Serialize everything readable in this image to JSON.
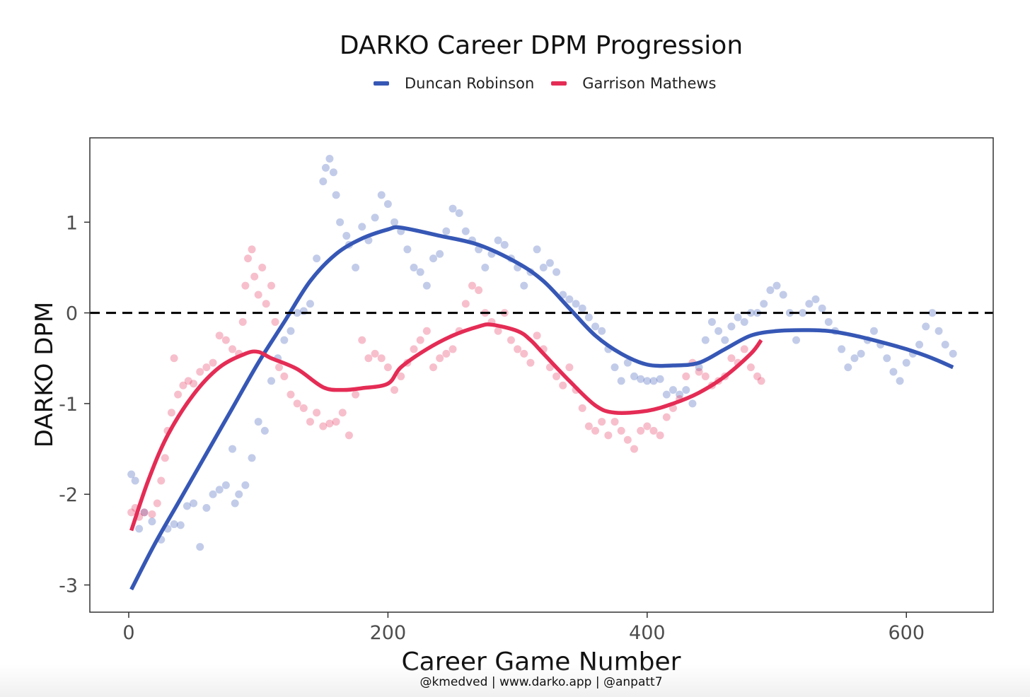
{
  "chart_data": {
    "type": "scatter",
    "title": "DARKO Career DPM Progression",
    "xlabel": "Career Game Number",
    "ylabel": "DARKO DPM",
    "xlim": [
      -30,
      667
    ],
    "ylim": [
      -3.3,
      1.93
    ],
    "x_ticks": [
      0,
      200,
      400,
      600
    ],
    "y_ticks": [
      1,
      0,
      -1,
      -2,
      -3
    ],
    "x_tick_labels": [
      "0",
      "200",
      "400",
      "600"
    ],
    "y_tick_labels": [
      "1",
      "0",
      "-1",
      "-2",
      "-3"
    ],
    "reference_line": {
      "y": 0,
      "style": "dashed"
    },
    "legend_position": "top",
    "series": [
      {
        "name": "Duncan Robinson",
        "color": "#3657b5",
        "n_games": 636,
        "smooth": [
          [
            2,
            -3.05
          ],
          [
            20,
            -2.55
          ],
          [
            40,
            -2.05
          ],
          [
            60,
            -1.55
          ],
          [
            80,
            -1.05
          ],
          [
            100,
            -0.55
          ],
          [
            120,
            -0.1
          ],
          [
            140,
            0.35
          ],
          [
            160,
            0.65
          ],
          [
            180,
            0.82
          ],
          [
            200,
            0.92
          ],
          [
            210,
            0.94
          ],
          [
            240,
            0.85
          ],
          [
            270,
            0.75
          ],
          [
            300,
            0.55
          ],
          [
            320,
            0.35
          ],
          [
            340,
            0.05
          ],
          [
            360,
            -0.25
          ],
          [
            380,
            -0.45
          ],
          [
            400,
            -0.57
          ],
          [
            420,
            -0.58
          ],
          [
            440,
            -0.55
          ],
          [
            460,
            -0.4
          ],
          [
            480,
            -0.25
          ],
          [
            500,
            -0.2
          ],
          [
            520,
            -0.19
          ],
          [
            540,
            -0.2
          ],
          [
            560,
            -0.25
          ],
          [
            580,
            -0.32
          ],
          [
            600,
            -0.4
          ],
          [
            620,
            -0.5
          ],
          [
            636,
            -0.6
          ]
        ],
        "points": [
          [
            2,
            -1.78
          ],
          [
            5,
            -1.85
          ],
          [
            8,
            -2.38
          ],
          [
            12,
            -2.2
          ],
          [
            18,
            -2.3
          ],
          [
            25,
            -2.5
          ],
          [
            30,
            -2.38
          ],
          [
            35,
            -2.33
          ],
          [
            40,
            -2.34
          ],
          [
            45,
            -2.13
          ],
          [
            50,
            -2.1
          ],
          [
            55,
            -2.58
          ],
          [
            60,
            -2.15
          ],
          [
            65,
            -2.0
          ],
          [
            70,
            -1.95
          ],
          [
            75,
            -1.9
          ],
          [
            80,
            -1.5
          ],
          [
            82,
            -2.1
          ],
          [
            85,
            -2.0
          ],
          [
            90,
            -1.9
          ],
          [
            95,
            -1.6
          ],
          [
            100,
            -1.2
          ],
          [
            105,
            -1.3
          ],
          [
            110,
            -0.75
          ],
          [
            115,
            -0.5
          ],
          [
            120,
            -0.3
          ],
          [
            125,
            -0.2
          ],
          [
            130,
            0.0
          ],
          [
            135,
            0.02
          ],
          [
            140,
            0.1
          ],
          [
            145,
            0.6
          ],
          [
            150,
            1.45
          ],
          [
            152,
            1.6
          ],
          [
            155,
            1.7
          ],
          [
            158,
            1.55
          ],
          [
            160,
            1.3
          ],
          [
            163,
            1.0
          ],
          [
            168,
            0.85
          ],
          [
            170,
            0.75
          ],
          [
            175,
            0.5
          ],
          [
            180,
            0.95
          ],
          [
            185,
            0.8
          ],
          [
            190,
            1.05
          ],
          [
            195,
            1.3
          ],
          [
            200,
            1.2
          ],
          [
            205,
            1.0
          ],
          [
            210,
            0.9
          ],
          [
            215,
            0.7
          ],
          [
            220,
            0.5
          ],
          [
            225,
            0.45
          ],
          [
            230,
            0.3
          ],
          [
            235,
            0.6
          ],
          [
            240,
            0.65
          ],
          [
            245,
            0.9
          ],
          [
            250,
            1.15
          ],
          [
            255,
            1.1
          ],
          [
            260,
            0.9
          ],
          [
            265,
            0.8
          ],
          [
            270,
            0.7
          ],
          [
            275,
            0.5
          ],
          [
            280,
            0.65
          ],
          [
            285,
            0.8
          ],
          [
            290,
            0.75
          ],
          [
            295,
            0.6
          ],
          [
            300,
            0.5
          ],
          [
            305,
            0.3
          ],
          [
            310,
            0.45
          ],
          [
            315,
            0.7
          ],
          [
            320,
            0.5
          ],
          [
            325,
            0.55
          ],
          [
            330,
            0.45
          ],
          [
            335,
            0.2
          ],
          [
            340,
            0.15
          ],
          [
            345,
            0.1
          ],
          [
            350,
            0.05
          ],
          [
            355,
            -0.05
          ],
          [
            360,
            -0.15
          ],
          [
            365,
            -0.2
          ],
          [
            370,
            -0.4
          ],
          [
            375,
            -0.6
          ],
          [
            380,
            -0.75
          ],
          [
            385,
            -0.55
          ],
          [
            390,
            -0.7
          ],
          [
            395,
            -0.73
          ],
          [
            400,
            -0.75
          ],
          [
            405,
            -0.75
          ],
          [
            410,
            -0.73
          ],
          [
            415,
            -0.9
          ],
          [
            420,
            -0.85
          ],
          [
            425,
            -0.9
          ],
          [
            430,
            -0.85
          ],
          [
            435,
            -1.0
          ],
          [
            440,
            -0.6
          ],
          [
            445,
            -0.3
          ],
          [
            450,
            -0.1
          ],
          [
            455,
            -0.2
          ],
          [
            460,
            -0.3
          ],
          [
            465,
            -0.15
          ],
          [
            470,
            -0.05
          ],
          [
            475,
            -0.1
          ],
          [
            480,
            0.0
          ],
          [
            485,
            0.0
          ],
          [
            490,
            0.1
          ],
          [
            495,
            0.25
          ],
          [
            500,
            0.3
          ],
          [
            505,
            0.2
          ],
          [
            510,
            0.0
          ],
          [
            515,
            -0.3
          ],
          [
            520,
            0.0
          ],
          [
            525,
            0.1
          ],
          [
            530,
            0.15
          ],
          [
            535,
            0.05
          ],
          [
            540,
            -0.1
          ],
          [
            545,
            -0.2
          ],
          [
            550,
            -0.4
          ],
          [
            555,
            -0.6
          ],
          [
            560,
            -0.5
          ],
          [
            565,
            -0.45
          ],
          [
            570,
            -0.3
          ],
          [
            575,
            -0.2
          ],
          [
            580,
            -0.35
          ],
          [
            585,
            -0.5
          ],
          [
            590,
            -0.65
          ],
          [
            595,
            -0.75
          ],
          [
            600,
            -0.55
          ],
          [
            605,
            -0.45
          ],
          [
            610,
            -0.35
          ],
          [
            615,
            -0.15
          ],
          [
            620,
            0.0
          ],
          [
            625,
            -0.2
          ],
          [
            630,
            -0.35
          ],
          [
            636,
            -0.45
          ]
        ]
      },
      {
        "name": "Garrison Mathews",
        "color": "#e42c55",
        "n_games": 488,
        "smooth": [
          [
            2,
            -2.4
          ],
          [
            15,
            -1.85
          ],
          [
            30,
            -1.35
          ],
          [
            50,
            -0.9
          ],
          [
            70,
            -0.6
          ],
          [
            90,
            -0.45
          ],
          [
            100,
            -0.43
          ],
          [
            110,
            -0.5
          ],
          [
            130,
            -0.62
          ],
          [
            150,
            -0.82
          ],
          [
            165,
            -0.85
          ],
          [
            180,
            -0.83
          ],
          [
            200,
            -0.78
          ],
          [
            210,
            -0.6
          ],
          [
            230,
            -0.4
          ],
          [
            250,
            -0.25
          ],
          [
            270,
            -0.15
          ],
          [
            280,
            -0.13
          ],
          [
            300,
            -0.2
          ],
          [
            310,
            -0.3
          ],
          [
            320,
            -0.45
          ],
          [
            340,
            -0.75
          ],
          [
            360,
            -1.02
          ],
          [
            375,
            -1.1
          ],
          [
            400,
            -1.08
          ],
          [
            420,
            -1.0
          ],
          [
            440,
            -0.88
          ],
          [
            460,
            -0.7
          ],
          [
            480,
            -0.45
          ],
          [
            488,
            -0.3
          ]
        ],
        "points": [
          [
            2,
            -2.2
          ],
          [
            5,
            -2.15
          ],
          [
            8,
            -2.25
          ],
          [
            12,
            -2.2
          ],
          [
            18,
            -2.22
          ],
          [
            22,
            -2.1
          ],
          [
            25,
            -1.85
          ],
          [
            28,
            -1.6
          ],
          [
            30,
            -1.3
          ],
          [
            33,
            -1.1
          ],
          [
            35,
            -0.5
          ],
          [
            38,
            -0.9
          ],
          [
            42,
            -0.8
          ],
          [
            46,
            -0.75
          ],
          [
            50,
            -0.78
          ],
          [
            55,
            -0.65
          ],
          [
            60,
            -0.6
          ],
          [
            65,
            -0.55
          ],
          [
            70,
            -0.25
          ],
          [
            75,
            -0.3
          ],
          [
            80,
            -0.4
          ],
          [
            85,
            -0.45
          ],
          [
            88,
            -0.1
          ],
          [
            90,
            0.3
          ],
          [
            92,
            0.6
          ],
          [
            95,
            0.7
          ],
          [
            97,
            0.4
          ],
          [
            100,
            0.2
          ],
          [
            103,
            0.5
          ],
          [
            106,
            0.1
          ],
          [
            110,
            0.3
          ],
          [
            113,
            -0.1
          ],
          [
            116,
            -0.6
          ],
          [
            120,
            -0.7
          ],
          [
            125,
            -0.9
          ],
          [
            130,
            -1.0
          ],
          [
            135,
            -1.05
          ],
          [
            140,
            -1.2
          ],
          [
            145,
            -1.1
          ],
          [
            150,
            -1.25
          ],
          [
            155,
            -1.22
          ],
          [
            160,
            -1.2
          ],
          [
            165,
            -1.1
          ],
          [
            170,
            -1.35
          ],
          [
            175,
            -0.9
          ],
          [
            180,
            -0.3
          ],
          [
            185,
            -0.5
          ],
          [
            190,
            -0.45
          ],
          [
            195,
            -0.5
          ],
          [
            200,
            -0.6
          ],
          [
            205,
            -0.85
          ],
          [
            210,
            -0.7
          ],
          [
            215,
            -0.55
          ],
          [
            220,
            -0.4
          ],
          [
            225,
            -0.3
          ],
          [
            230,
            -0.2
          ],
          [
            235,
            -0.6
          ],
          [
            240,
            -0.5
          ],
          [
            245,
            -0.45
          ],
          [
            250,
            -0.4
          ],
          [
            255,
            -0.2
          ],
          [
            260,
            0.1
          ],
          [
            265,
            0.3
          ],
          [
            270,
            0.25
          ],
          [
            275,
            0.0
          ],
          [
            280,
            -0.1
          ],
          [
            285,
            -0.2
          ],
          [
            290,
            0.0
          ],
          [
            295,
            -0.3
          ],
          [
            300,
            -0.4
          ],
          [
            305,
            -0.45
          ],
          [
            310,
            -0.55
          ],
          [
            315,
            -0.25
          ],
          [
            320,
            -0.4
          ],
          [
            325,
            -0.6
          ],
          [
            330,
            -0.7
          ],
          [
            335,
            -0.8
          ],
          [
            340,
            -0.6
          ],
          [
            345,
            -0.85
          ],
          [
            350,
            -1.05
          ],
          [
            355,
            -1.25
          ],
          [
            360,
            -1.3
          ],
          [
            365,
            -1.2
          ],
          [
            370,
            -1.35
          ],
          [
            375,
            -1.2
          ],
          [
            380,
            -1.3
          ],
          [
            385,
            -1.4
          ],
          [
            390,
            -1.5
          ],
          [
            395,
            -1.3
          ],
          [
            400,
            -1.25
          ],
          [
            405,
            -1.3
          ],
          [
            410,
            -1.35
          ],
          [
            415,
            -1.15
          ],
          [
            420,
            -1.05
          ],
          [
            425,
            -0.95
          ],
          [
            430,
            -0.7
          ],
          [
            435,
            -0.55
          ],
          [
            440,
            -0.65
          ],
          [
            445,
            -0.7
          ],
          [
            450,
            -0.8
          ],
          [
            455,
            -0.75
          ],
          [
            460,
            -0.7
          ],
          [
            465,
            -0.5
          ],
          [
            470,
            -0.55
          ],
          [
            475,
            -0.4
          ],
          [
            480,
            -0.6
          ],
          [
            485,
            -0.7
          ],
          [
            488,
            -0.75
          ]
        ]
      }
    ]
  },
  "legend": {
    "items": [
      {
        "label": "Duncan Robinson",
        "color": "#3657b5"
      },
      {
        "label": "Garrison Mathews",
        "color": "#e42c55"
      }
    ]
  },
  "footer": {
    "credits": "@kmedved | www.darko.app | @anpatt7"
  }
}
